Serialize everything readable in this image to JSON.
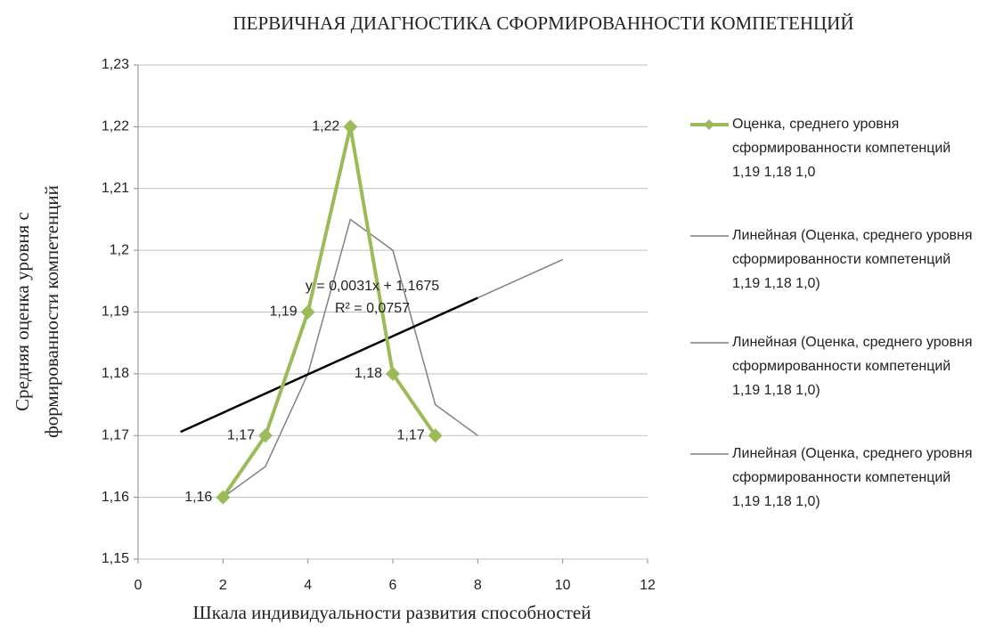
{
  "chart_data": {
    "type": "line",
    "title": "ПЕРВИЧНАЯ ДИАГНОСТИКА СФОРМИРОВАННОСТИ КОМПЕТЕНЦИЙ",
    "xlabel": "Шкала индивидуальности развития способностей",
    "ylabel": [
      "Средняя оценка уровня с",
      "формированности  компетенций"
    ],
    "xlim": [
      0,
      12
    ],
    "xticks": [
      0,
      2,
      4,
      6,
      8,
      10,
      12
    ],
    "ylim": [
      1.15,
      1.23
    ],
    "yticks": [
      {
        "value": 1.15,
        "label": "1,15"
      },
      {
        "value": 1.16,
        "label": "1,16"
      },
      {
        "value": 1.17,
        "label": "1,17"
      },
      {
        "value": 1.18,
        "label": "1,18"
      },
      {
        "value": 1.19,
        "label": "1,19"
      },
      {
        "value": 1.2,
        "label": "1,2"
      },
      {
        "value": 1.21,
        "label": "1,21"
      },
      {
        "value": 1.22,
        "label": "1,22"
      },
      {
        "value": 1.23,
        "label": "1,23"
      }
    ],
    "grid": true,
    "annotations": [
      "y = 0,0031x + 1,1675",
      "R² = 0,0757"
    ],
    "series": [
      {
        "name": "Оценка, среднего уровня сформированности компетенций 1,19 1,18 1,0",
        "color": "#9bbb59",
        "x": [
          2,
          3,
          4,
          5,
          6,
          7
        ],
        "values": [
          1.16,
          1.17,
          1.19,
          1.22,
          1.18,
          1.17
        ],
        "value_labels": [
          "1,16",
          "1,17",
          "1,19",
          "1,22",
          "1,18",
          "1,17"
        ]
      },
      {
        "name": "Линейная (Оценка, среднего уровня сформированности компетенций 1,19 1,18 1,0)",
        "color": "#000000",
        "x": [
          1,
          8
        ],
        "values": [
          1.1706,
          1.1923
        ]
      },
      {
        "name": "Линейная (Оценка, среднего уровня сформированности компетенций 1,19 1,18 1,0)",
        "color": "#808080",
        "x": [
          8,
          10
        ],
        "values": [
          1.1923,
          1.1985
        ]
      },
      {
        "name": "Линейная (Оценка, среднего уровня сформированности компетенций 1,19 1,18 1,0)",
        "color": "#808080",
        "x": [
          2,
          3,
          4,
          5,
          6,
          7,
          8
        ],
        "values": [
          1.16,
          1.165,
          1.18,
          1.205,
          1.2,
          1.175,
          1.17
        ]
      }
    ]
  }
}
